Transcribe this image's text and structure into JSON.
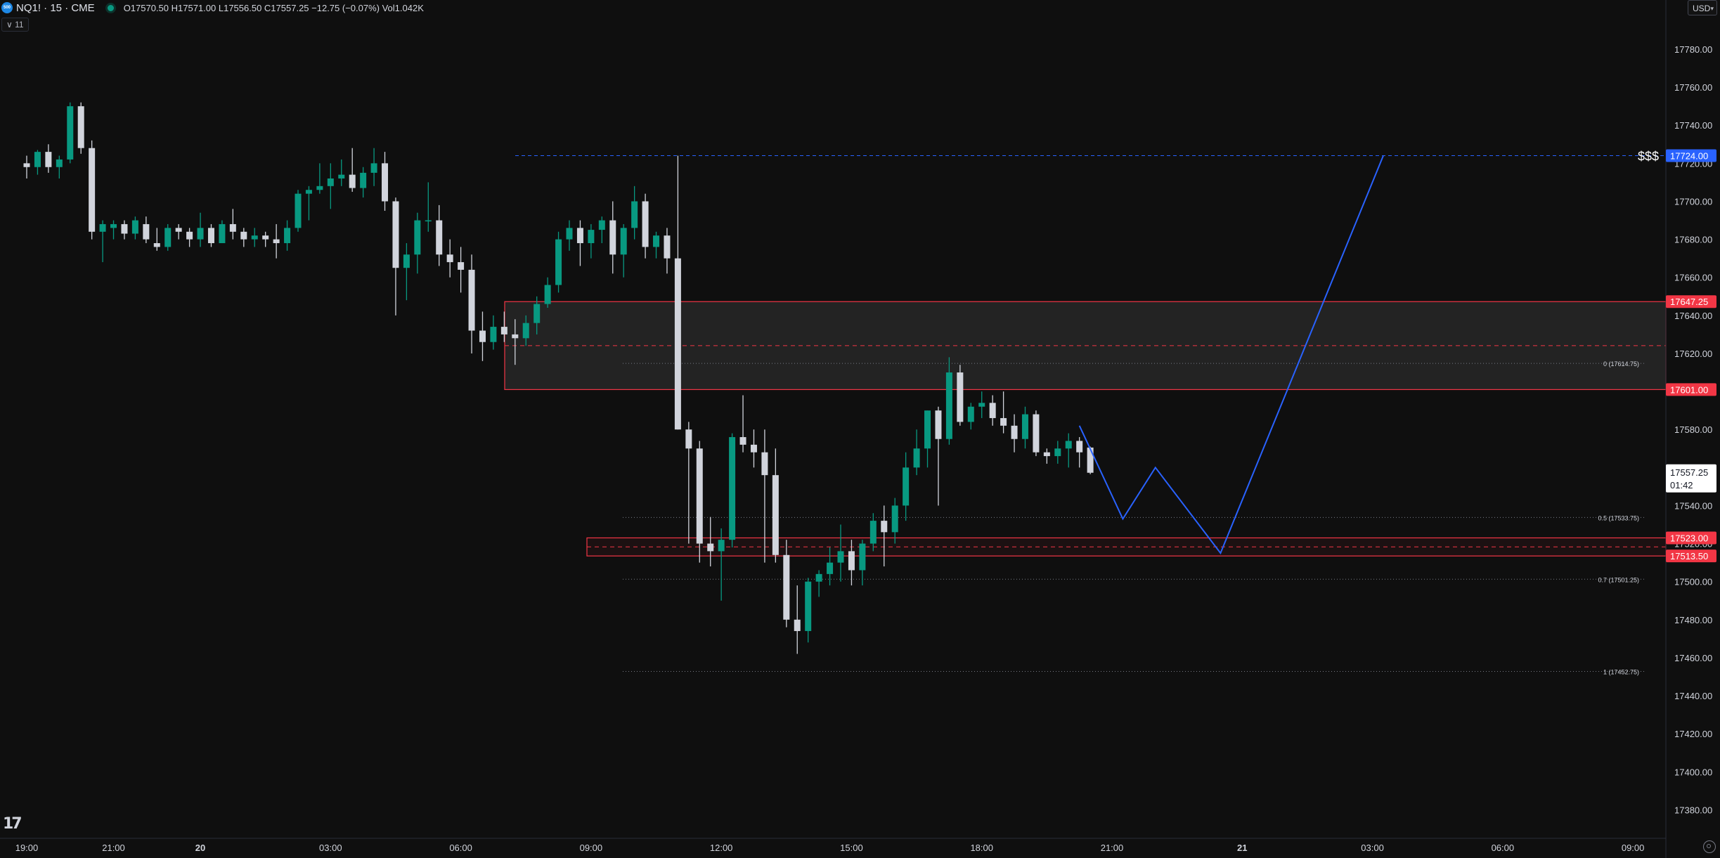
{
  "header": {
    "symbol": "NQ1! · 15 · CME",
    "logo_text": "500",
    "ohlc": "O17570.50  H17571.00  L17556.50  C17557.25  −12.75 (−0.07%)  Vol1.042K",
    "indicators_label": "∨ 11"
  },
  "currency": {
    "label": "USD",
    "caret": "▾"
  },
  "logo": {
    "text": "17"
  },
  "colors": {
    "up": "#089981",
    "down": "#d1d4dc",
    "zone": "#f23645",
    "projection": "#2962ff",
    "grid_text": "#d1d4dc"
  },
  "chart_data": {
    "type": "candlestick",
    "title": "NQ1! · 15 · CME",
    "interval_minutes": 15,
    "yticks": [
      17380,
      17400,
      17420,
      17440,
      17460,
      17480,
      17500,
      17520,
      17540,
      17560,
      17580,
      17600,
      17620,
      17640,
      17660,
      17680,
      17700,
      17720,
      17740,
      17760,
      17780
    ],
    "ytick_labels": [
      "17380.00",
      "17400.00",
      "17420.00",
      "17440.00",
      "17460.00",
      "17480.00",
      "17500.00",
      "17520.00",
      "17540.00",
      "17560.00",
      "17580.00",
      "17600.00",
      "17620.00",
      "17640.00",
      "17660.00",
      "17680.00",
      "17700.00",
      "17720.00",
      "17740.00",
      "17760.00",
      "17780.00"
    ],
    "ylim": [
      17365,
      17797
    ],
    "xticks": [
      {
        "label": "19:00",
        "bar": 0
      },
      {
        "label": "21:00",
        "bar": 8
      },
      {
        "label": "20",
        "bar": 16
      },
      {
        "label": "03:00",
        "bar": 28
      },
      {
        "label": "06:00",
        "bar": 40
      },
      {
        "label": "09:00",
        "bar": 52
      },
      {
        "label": "12:00",
        "bar": 64
      },
      {
        "label": "15:00",
        "bar": 76
      },
      {
        "label": "18:00",
        "bar": 88
      },
      {
        "label": "21:00",
        "bar": 100
      },
      {
        "label": "21",
        "bar": 112
      },
      {
        "label": "03:00",
        "bar": 124
      },
      {
        "label": "06:00",
        "bar": 136
      },
      {
        "label": "09:00",
        "bar": 148
      },
      {
        "label": "12:00",
        "bar": 160
      },
      {
        "label": "15:00",
        "bar": 172
      },
      {
        "label": "18:00",
        "bar": 184
      }
    ],
    "candles": [
      [
        17720,
        17724,
        17712,
        17718
      ],
      [
        17718,
        17727,
        17714,
        17726
      ],
      [
        17726,
        17730,
        17715,
        17718
      ],
      [
        17718,
        17724,
        17712,
        17722
      ],
      [
        17722,
        17752,
        17720,
        17750
      ],
      [
        17750,
        17752,
        17725,
        17728
      ],
      [
        17728,
        17732,
        17680,
        17684
      ],
      [
        17684,
        17690,
        17668,
        17688
      ],
      [
        17686,
        17690,
        17680,
        17688
      ],
      [
        17688,
        17690,
        17680,
        17683
      ],
      [
        17683,
        17692,
        17680,
        17690
      ],
      [
        17688,
        17692,
        17678,
        17680
      ],
      [
        17678,
        17686,
        17674,
        17676
      ],
      [
        17676,
        17688,
        17674,
        17686
      ],
      [
        17686,
        17688,
        17680,
        17684
      ],
      [
        17684,
        17686,
        17676,
        17680
      ],
      [
        17680,
        17694,
        17676,
        17686
      ],
      [
        17686,
        17688,
        17676,
        17678
      ],
      [
        17678,
        17690,
        17678,
        17688
      ],
      [
        17688,
        17696,
        17680,
        17684
      ],
      [
        17684,
        17686,
        17676,
        17680
      ],
      [
        17680,
        17686,
        17676,
        17682
      ],
      [
        17682,
        17684,
        17676,
        17680
      ],
      [
        17680,
        17688,
        17670,
        17678
      ],
      [
        17678,
        17690,
        17674,
        17686
      ],
      [
        17686,
        17706,
        17684,
        17704
      ],
      [
        17704,
        17708,
        17690,
        17706
      ],
      [
        17706,
        17720,
        17704,
        17708
      ],
      [
        17708,
        17720,
        17696,
        17712
      ],
      [
        17712,
        17722,
        17708,
        17714
      ],
      [
        17714,
        17728,
        17705,
        17707
      ],
      [
        17707,
        17718,
        17702,
        17715
      ],
      [
        17715,
        17728,
        17708,
        17720
      ],
      [
        17720,
        17726,
        17695,
        17700
      ],
      [
        17700,
        17702,
        17640,
        17665
      ],
      [
        17665,
        17678,
        17648,
        17672
      ],
      [
        17672,
        17694,
        17662,
        17690
      ],
      [
        17690,
        17710,
        17684,
        17690
      ],
      [
        17690,
        17698,
        17666,
        17672
      ],
      [
        17672,
        17680,
        17660,
        17668
      ],
      [
        17668,
        17676,
        17652,
        17664
      ],
      [
        17664,
        17672,
        17620,
        17632
      ],
      [
        17632,
        17642,
        17616,
        17626
      ],
      [
        17626,
        17640,
        17622,
        17634
      ],
      [
        17634,
        17642,
        17626,
        17630
      ],
      [
        17630,
        17638,
        17614,
        17628
      ],
      [
        17628,
        17640,
        17624,
        17636
      ],
      [
        17636,
        17650,
        17630,
        17646
      ],
      [
        17646,
        17660,
        17644,
        17656
      ],
      [
        17656,
        17684,
        17652,
        17680
      ],
      [
        17680,
        17690,
        17674,
        17686
      ],
      [
        17686,
        17690,
        17666,
        17678
      ],
      [
        17678,
        17688,
        17670,
        17685
      ],
      [
        17685,
        17692,
        17678,
        17690
      ],
      [
        17690,
        17700,
        17662,
        17672
      ],
      [
        17672,
        17688,
        17660,
        17686
      ],
      [
        17686,
        17708,
        17680,
        17700
      ],
      [
        17700,
        17704,
        17670,
        17676
      ],
      [
        17676,
        17684,
        17670,
        17682
      ],
      [
        17682,
        17686,
        17662,
        17670
      ],
      [
        17670,
        17724,
        17580,
        17580
      ],
      [
        17580,
        17584,
        17520,
        17570
      ],
      [
        17570,
        17574,
        17510,
        17520
      ],
      [
        17520,
        17534,
        17508,
        17516
      ],
      [
        17516,
        17528,
        17490,
        17522
      ],
      [
        17522,
        17578,
        17518,
        17576
      ],
      [
        17576,
        17598,
        17568,
        17572
      ],
      [
        17572,
        17580,
        17560,
        17568
      ],
      [
        17568,
        17580,
        17510,
        17556
      ],
      [
        17556,
        17570,
        17510,
        17514
      ],
      [
        17514,
        17522,
        17476,
        17480
      ],
      [
        17480,
        17498,
        17462,
        17474
      ],
      [
        17474,
        17502,
        17468,
        17500
      ],
      [
        17500,
        17506,
        17492,
        17504
      ],
      [
        17504,
        17518,
        17498,
        17510
      ],
      [
        17510,
        17530,
        17500,
        17516
      ],
      [
        17516,
        17522,
        17498,
        17506
      ],
      [
        17506,
        17522,
        17498,
        17520
      ],
      [
        17520,
        17536,
        17516,
        17532
      ],
      [
        17532,
        17540,
        17508,
        17526
      ],
      [
        17526,
        17544,
        17520,
        17540
      ],
      [
        17540,
        17568,
        17532,
        17560
      ],
      [
        17560,
        17580,
        17556,
        17570
      ],
      [
        17570,
        17590,
        17560,
        17590
      ],
      [
        17590,
        17592,
        17540,
        17575
      ],
      [
        17575,
        17618,
        17572,
        17610
      ],
      [
        17610,
        17614,
        17582,
        17584
      ],
      [
        17584,
        17594,
        17580,
        17592
      ],
      [
        17592,
        17600,
        17586,
        17594
      ],
      [
        17594,
        17598,
        17582,
        17586
      ],
      [
        17586,
        17600,
        17578,
        17582
      ],
      [
        17582,
        17588,
        17568,
        17575
      ],
      [
        17575,
        17592,
        17570,
        17588
      ],
      [
        17588,
        17590,
        17566,
        17568
      ],
      [
        17568,
        17570,
        17562,
        17566
      ],
      [
        17566,
        17574,
        17562,
        17570
      ],
      [
        17570,
        17578,
        17560,
        17574
      ],
      [
        17574,
        17576,
        17560,
        17568
      ],
      [
        17570.5,
        17571,
        17556.5,
        17557.25
      ]
    ],
    "levels": [
      {
        "name": "$$$",
        "price": 17724.0,
        "label": "17724.00"
      },
      {
        "name": "zone-top",
        "price": 17647.25,
        "label": "17647.25"
      },
      {
        "name": "zone-bottom",
        "price": 17601.0,
        "label": "17601.00"
      },
      {
        "name": "zone-lower-top",
        "price": 17523.0,
        "label": "17523.00"
      },
      {
        "name": "zone-lower-bottom",
        "price": 17513.5,
        "label": "17513.50"
      }
    ],
    "zone_mid": 17624.1,
    "lower_zone_mid": 17518.25,
    "fib": [
      {
        "level": "0",
        "price": 17614.75,
        "label": "0 (17614.75)"
      },
      {
        "level": "0.5",
        "price": 17533.75,
        "label": "0.5 (17533.75)"
      },
      {
        "level": "0.7",
        "price": 17501.25,
        "label": "0.7 (17501.25)"
      },
      {
        "level": "1",
        "price": 17452.75,
        "label": "1 (17452.75)"
      }
    ],
    "current": {
      "price": 17557.25,
      "label": "17557.25",
      "countdown": "01:42"
    },
    "projection": [
      [
        97,
        17582
      ],
      [
        101,
        17533
      ],
      [
        104,
        17560
      ],
      [
        110,
        17515
      ],
      [
        125,
        17724
      ]
    ],
    "dollar_label": "$$$"
  }
}
